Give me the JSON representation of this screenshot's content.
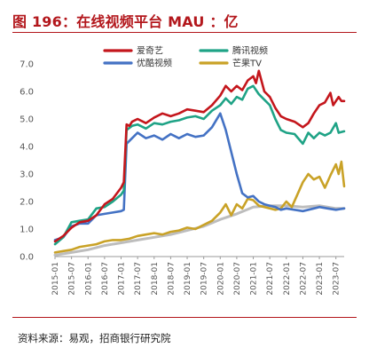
{
  "figure": {
    "title": "图 196：在线视频平台 MAU ：亿",
    "source": "资料来源：易观，招商银行研究院"
  },
  "chart_data": {
    "type": "line",
    "title": "",
    "xlabel": "",
    "ylabel": "",
    "ylim": [
      0.0,
      7.0
    ],
    "yticks": [
      "0.0",
      "1.0",
      "2.0",
      "3.0",
      "4.0",
      "5.0",
      "6.0",
      "7.0"
    ],
    "grid": false,
    "legend_position": "top",
    "x_ticks": [
      "2015-01",
      "2015-07",
      "2016-01",
      "2016-07",
      "2017-01",
      "2017-07",
      "2018-01",
      "2018-07",
      "2019-01",
      "2019-07",
      "2020-01",
      "2020-07",
      "2021-01",
      "2021-07",
      "2022-01",
      "2022-07",
      "2023-01",
      "2023-07"
    ],
    "x_range": [
      "2015-01",
      "2023-10"
    ],
    "series": [
      {
        "name": "爱奇艺",
        "color": "#c4161c",
        "points": [
          [
            "2015-01",
            0.55
          ],
          [
            "2015-04",
            0.75
          ],
          [
            "2015-07",
            1.05
          ],
          [
            "2015-10",
            1.25
          ],
          [
            "2016-01",
            1.3
          ],
          [
            "2016-04",
            1.5
          ],
          [
            "2016-07",
            1.9
          ],
          [
            "2016-10",
            2.1
          ],
          [
            "2017-01",
            2.5
          ],
          [
            "2017-02",
            2.7
          ],
          [
            "2017-03",
            4.8
          ],
          [
            "2017-04",
            4.75
          ],
          [
            "2017-05",
            4.9
          ],
          [
            "2017-07",
            5.0
          ],
          [
            "2017-10",
            4.85
          ],
          [
            "2018-01",
            5.05
          ],
          [
            "2018-04",
            5.2
          ],
          [
            "2018-07",
            5.1
          ],
          [
            "2018-10",
            5.2
          ],
          [
            "2019-01",
            5.35
          ],
          [
            "2019-04",
            5.3
          ],
          [
            "2019-07",
            5.25
          ],
          [
            "2019-10",
            5.5
          ],
          [
            "2020-01",
            5.85
          ],
          [
            "2020-03",
            6.2
          ],
          [
            "2020-05",
            6.0
          ],
          [
            "2020-07",
            6.2
          ],
          [
            "2020-09",
            6.05
          ],
          [
            "2020-11",
            6.4
          ],
          [
            "2021-01",
            6.55
          ],
          [
            "2021-02",
            6.3
          ],
          [
            "2021-03",
            6.75
          ],
          [
            "2021-05",
            6.0
          ],
          [
            "2021-07",
            5.8
          ],
          [
            "2021-09",
            5.4
          ],
          [
            "2021-11",
            5.1
          ],
          [
            "2022-01",
            5.0
          ],
          [
            "2022-04",
            4.9
          ],
          [
            "2022-07",
            4.7
          ],
          [
            "2022-09",
            4.85
          ],
          [
            "2022-11",
            5.2
          ],
          [
            "2023-01",
            5.5
          ],
          [
            "2023-03",
            5.6
          ],
          [
            "2023-05",
            5.95
          ],
          [
            "2023-06",
            5.5
          ],
          [
            "2023-08",
            5.8
          ],
          [
            "2023-09",
            5.65
          ],
          [
            "2023-10",
            5.65
          ]
        ]
      },
      {
        "name": "腾讯视频",
        "color": "#1fa386",
        "points": [
          [
            "2015-01",
            0.45
          ],
          [
            "2015-04",
            0.7
          ],
          [
            "2015-07",
            1.25
          ],
          [
            "2015-10",
            1.3
          ],
          [
            "2016-01",
            1.35
          ],
          [
            "2016-04",
            1.75
          ],
          [
            "2016-07",
            1.8
          ],
          [
            "2016-10",
            2.0
          ],
          [
            "2017-01",
            2.25
          ],
          [
            "2017-02",
            2.4
          ],
          [
            "2017-03",
            4.6
          ],
          [
            "2017-05",
            4.75
          ],
          [
            "2017-07",
            4.8
          ],
          [
            "2017-10",
            4.65
          ],
          [
            "2018-01",
            4.85
          ],
          [
            "2018-04",
            4.8
          ],
          [
            "2018-07",
            4.9
          ],
          [
            "2018-10",
            4.95
          ],
          [
            "2019-01",
            5.05
          ],
          [
            "2019-04",
            5.1
          ],
          [
            "2019-07",
            5.0
          ],
          [
            "2019-10",
            5.3
          ],
          [
            "2020-01",
            5.5
          ],
          [
            "2020-03",
            5.75
          ],
          [
            "2020-05",
            5.55
          ],
          [
            "2020-07",
            5.8
          ],
          [
            "2020-09",
            5.7
          ],
          [
            "2020-11",
            6.1
          ],
          [
            "2021-01",
            6.2
          ],
          [
            "2021-03",
            5.9
          ],
          [
            "2021-05",
            5.7
          ],
          [
            "2021-07",
            5.5
          ],
          [
            "2021-09",
            5.0
          ],
          [
            "2021-11",
            4.6
          ],
          [
            "2022-01",
            4.5
          ],
          [
            "2022-04",
            4.45
          ],
          [
            "2022-07",
            4.1
          ],
          [
            "2022-09",
            4.5
          ],
          [
            "2022-11",
            4.3
          ],
          [
            "2023-01",
            4.5
          ],
          [
            "2023-03",
            4.4
          ],
          [
            "2023-05",
            4.5
          ],
          [
            "2023-07",
            4.85
          ],
          [
            "2023-08",
            4.5
          ],
          [
            "2023-10",
            4.55
          ]
        ]
      },
      {
        "name": "优酷视频",
        "color": "#4472c4",
        "points": [
          [
            "2015-01",
            0.6
          ],
          [
            "2015-04",
            0.7
          ],
          [
            "2015-07",
            1.1
          ],
          [
            "2015-10",
            1.2
          ],
          [
            "2016-01",
            1.2
          ],
          [
            "2016-04",
            1.5
          ],
          [
            "2016-07",
            1.55
          ],
          [
            "2016-10",
            1.6
          ],
          [
            "2017-01",
            1.65
          ],
          [
            "2017-02",
            1.7
          ],
          [
            "2017-03",
            4.1
          ],
          [
            "2017-05",
            4.3
          ],
          [
            "2017-07",
            4.5
          ],
          [
            "2017-10",
            4.3
          ],
          [
            "2018-01",
            4.4
          ],
          [
            "2018-04",
            4.25
          ],
          [
            "2018-07",
            4.45
          ],
          [
            "2018-10",
            4.3
          ],
          [
            "2019-01",
            4.45
          ],
          [
            "2019-04",
            4.35
          ],
          [
            "2019-07",
            4.4
          ],
          [
            "2019-10",
            4.7
          ],
          [
            "2020-01",
            5.2
          ],
          [
            "2020-03",
            4.6
          ],
          [
            "2020-05",
            3.8
          ],
          [
            "2020-07",
            3.0
          ],
          [
            "2020-09",
            2.3
          ],
          [
            "2020-11",
            2.15
          ],
          [
            "2021-01",
            2.2
          ],
          [
            "2021-03",
            2.0
          ],
          [
            "2021-05",
            1.9
          ],
          [
            "2021-07",
            1.85
          ],
          [
            "2021-09",
            1.8
          ],
          [
            "2021-11",
            1.7
          ],
          [
            "2022-01",
            1.75
          ],
          [
            "2022-04",
            1.7
          ],
          [
            "2022-07",
            1.65
          ],
          [
            "2022-09",
            1.7
          ],
          [
            "2022-11",
            1.75
          ],
          [
            "2023-01",
            1.8
          ],
          [
            "2023-04",
            1.75
          ],
          [
            "2023-07",
            1.7
          ],
          [
            "2023-10",
            1.75
          ]
        ]
      },
      {
        "name": "芒果TV",
        "color": "#c9a227",
        "points": [
          [
            "2015-01",
            0.15
          ],
          [
            "2015-04",
            0.2
          ],
          [
            "2015-07",
            0.25
          ],
          [
            "2015-10",
            0.35
          ],
          [
            "2016-01",
            0.4
          ],
          [
            "2016-04",
            0.45
          ],
          [
            "2016-07",
            0.55
          ],
          [
            "2016-10",
            0.6
          ],
          [
            "2017-01",
            0.6
          ],
          [
            "2017-04",
            0.65
          ],
          [
            "2017-07",
            0.75
          ],
          [
            "2017-10",
            0.8
          ],
          [
            "2018-01",
            0.85
          ],
          [
            "2018-04",
            0.8
          ],
          [
            "2018-07",
            0.9
          ],
          [
            "2018-10",
            0.95
          ],
          [
            "2019-01",
            1.05
          ],
          [
            "2019-04",
            1.0
          ],
          [
            "2019-07",
            1.15
          ],
          [
            "2019-10",
            1.3
          ],
          [
            "2020-01",
            1.6
          ],
          [
            "2020-03",
            1.9
          ],
          [
            "2020-05",
            1.5
          ],
          [
            "2020-07",
            1.9
          ],
          [
            "2020-09",
            1.75
          ],
          [
            "2020-11",
            2.1
          ],
          [
            "2021-01",
            2.05
          ],
          [
            "2021-03",
            1.85
          ],
          [
            "2021-05",
            1.8
          ],
          [
            "2021-07",
            1.75
          ],
          [
            "2021-09",
            1.7
          ],
          [
            "2021-11",
            1.75
          ],
          [
            "2022-01",
            2.0
          ],
          [
            "2022-03",
            1.8
          ],
          [
            "2022-05",
            2.25
          ],
          [
            "2022-07",
            2.7
          ],
          [
            "2022-09",
            3.0
          ],
          [
            "2022-11",
            2.8
          ],
          [
            "2023-01",
            2.9
          ],
          [
            "2023-03",
            2.5
          ],
          [
            "2023-05",
            2.95
          ],
          [
            "2023-07",
            3.35
          ],
          [
            "2023-08",
            3.0
          ],
          [
            "2023-09",
            3.45
          ],
          [
            "2023-10",
            2.55
          ]
        ]
      },
      {
        "name": "",
        "color": "#bdbdbd",
        "points": [
          [
            "2015-01",
            0.05
          ],
          [
            "2015-07",
            0.15
          ],
          [
            "2016-01",
            0.25
          ],
          [
            "2016-07",
            0.4
          ],
          [
            "2017-01",
            0.5
          ],
          [
            "2017-07",
            0.6
          ],
          [
            "2018-01",
            0.7
          ],
          [
            "2018-07",
            0.8
          ],
          [
            "2019-01",
            0.95
          ],
          [
            "2019-07",
            1.1
          ],
          [
            "2020-01",
            1.35
          ],
          [
            "2020-07",
            1.55
          ],
          [
            "2021-01",
            1.8
          ],
          [
            "2021-07",
            1.85
          ],
          [
            "2022-01",
            1.85
          ],
          [
            "2022-07",
            1.8
          ],
          [
            "2023-01",
            1.85
          ],
          [
            "2023-07",
            1.75
          ],
          [
            "2023-10",
            1.75
          ]
        ]
      }
    ]
  }
}
